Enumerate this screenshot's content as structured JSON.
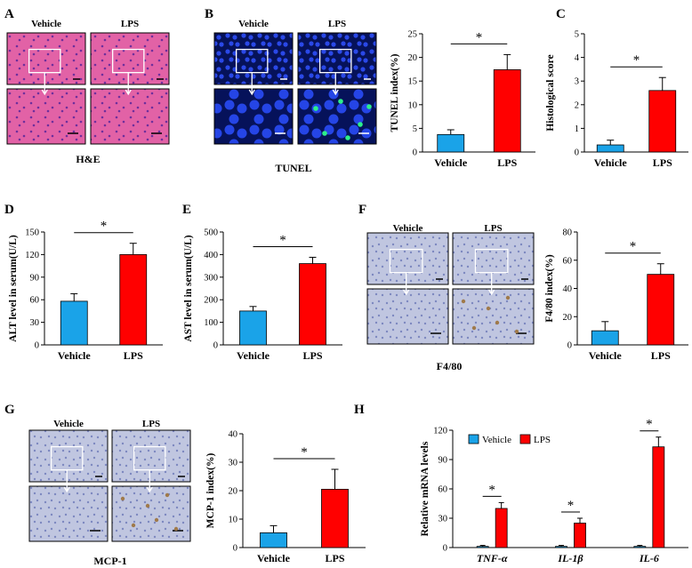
{
  "colors": {
    "vehicle": "#1aa3e8",
    "lps": "#ff0000",
    "he": "#e0559a",
    "tunel": "#1f35c8",
    "ihc": "#b9bfdc"
  },
  "panel_letters": [
    "A",
    "B",
    "C",
    "D",
    "E",
    "F",
    "G",
    "H"
  ],
  "image_panels": [
    {
      "id": "A",
      "cols": [
        "Vehicle",
        "LPS"
      ],
      "caption": "H&E",
      "style": "he"
    },
    {
      "id": "B",
      "cols": [
        "Vehicle",
        "LPS"
      ],
      "caption": "TUNEL",
      "style": "tunel"
    },
    {
      "id": "F",
      "cols": [
        "Vehicle",
        "LPS"
      ],
      "caption": "F4/80",
      "style": "ihc"
    },
    {
      "id": "G",
      "cols": [
        "Vehicle",
        "LPS"
      ],
      "caption": "MCP-1",
      "style": "ihc"
    }
  ],
  "chart_data": [
    {
      "id": "tunel",
      "type": "bar",
      "categories": [
        "Vehicle",
        "LPS"
      ],
      "values": [
        3.7,
        17.4
      ],
      "errors": [
        1.0,
        3.2
      ],
      "ylabel": "TUNEL  index(%)",
      "ylim": [
        0,
        25
      ],
      "yticks": [
        0,
        5,
        10,
        15,
        20,
        25
      ],
      "significance": "*"
    },
    {
      "id": "histo",
      "type": "bar",
      "categories": [
        "Vehicle",
        "LPS"
      ],
      "values": [
        0.3,
        2.6
      ],
      "errors": [
        0.2,
        0.55
      ],
      "ylabel": "Histological score",
      "ylim": [
        0,
        5
      ],
      "yticks": [
        0,
        1,
        2,
        3,
        4,
        5
      ],
      "significance": "*"
    },
    {
      "id": "alt",
      "type": "bar",
      "categories": [
        "Vehicle",
        "LPS"
      ],
      "values": [
        58,
        120
      ],
      "errors": [
        10,
        15
      ],
      "ylabel": "ALT level in serum(U/L)",
      "ylim": [
        0,
        150
      ],
      "yticks": [
        0,
        30,
        60,
        90,
        120,
        150
      ],
      "significance": "*"
    },
    {
      "id": "ast",
      "type": "bar",
      "categories": [
        "Vehicle",
        "LPS"
      ],
      "values": [
        150,
        360
      ],
      "errors": [
        20,
        28
      ],
      "ylabel": "AST level in serum(U/L)",
      "ylim": [
        0,
        500
      ],
      "yticks": [
        0,
        100,
        200,
        300,
        400,
        500
      ],
      "significance": "*"
    },
    {
      "id": "f480",
      "type": "bar",
      "categories": [
        "Vehicle",
        "LPS"
      ],
      "values": [
        10,
        50
      ],
      "errors": [
        6.5,
        7.5
      ],
      "ylabel": "F4/80  index(%)",
      "ylim": [
        0,
        80
      ],
      "yticks": [
        0,
        20,
        40,
        60,
        80
      ],
      "significance": "*"
    },
    {
      "id": "mcp1",
      "type": "bar",
      "categories": [
        "Vehicle",
        "LPS"
      ],
      "values": [
        5.2,
        20.5
      ],
      "errors": [
        2.5,
        7.0
      ],
      "ylabel": "MCP-1  index(%)",
      "ylim": [
        0,
        40
      ],
      "yticks": [
        0,
        10,
        20,
        30,
        40
      ],
      "significance": "*"
    },
    {
      "id": "mrna",
      "type": "bar",
      "categories": [
        "TNF-α",
        "IL-1β",
        "IL-6"
      ],
      "series": [
        {
          "name": "Vehicle",
          "values": [
            1.2,
            1.2,
            1.2
          ],
          "errors": [
            1.0,
            1.0,
            1.0
          ]
        },
        {
          "name": "LPS",
          "values": [
            40,
            25,
            103
          ],
          "errors": [
            6,
            5,
            10
          ]
        }
      ],
      "ylabel": "Relative mRNA levels",
      "ylim": [
        0,
        120
      ],
      "yticks": [
        0,
        30,
        60,
        90,
        120
      ],
      "legend": "top-left",
      "significance": "*"
    }
  ]
}
